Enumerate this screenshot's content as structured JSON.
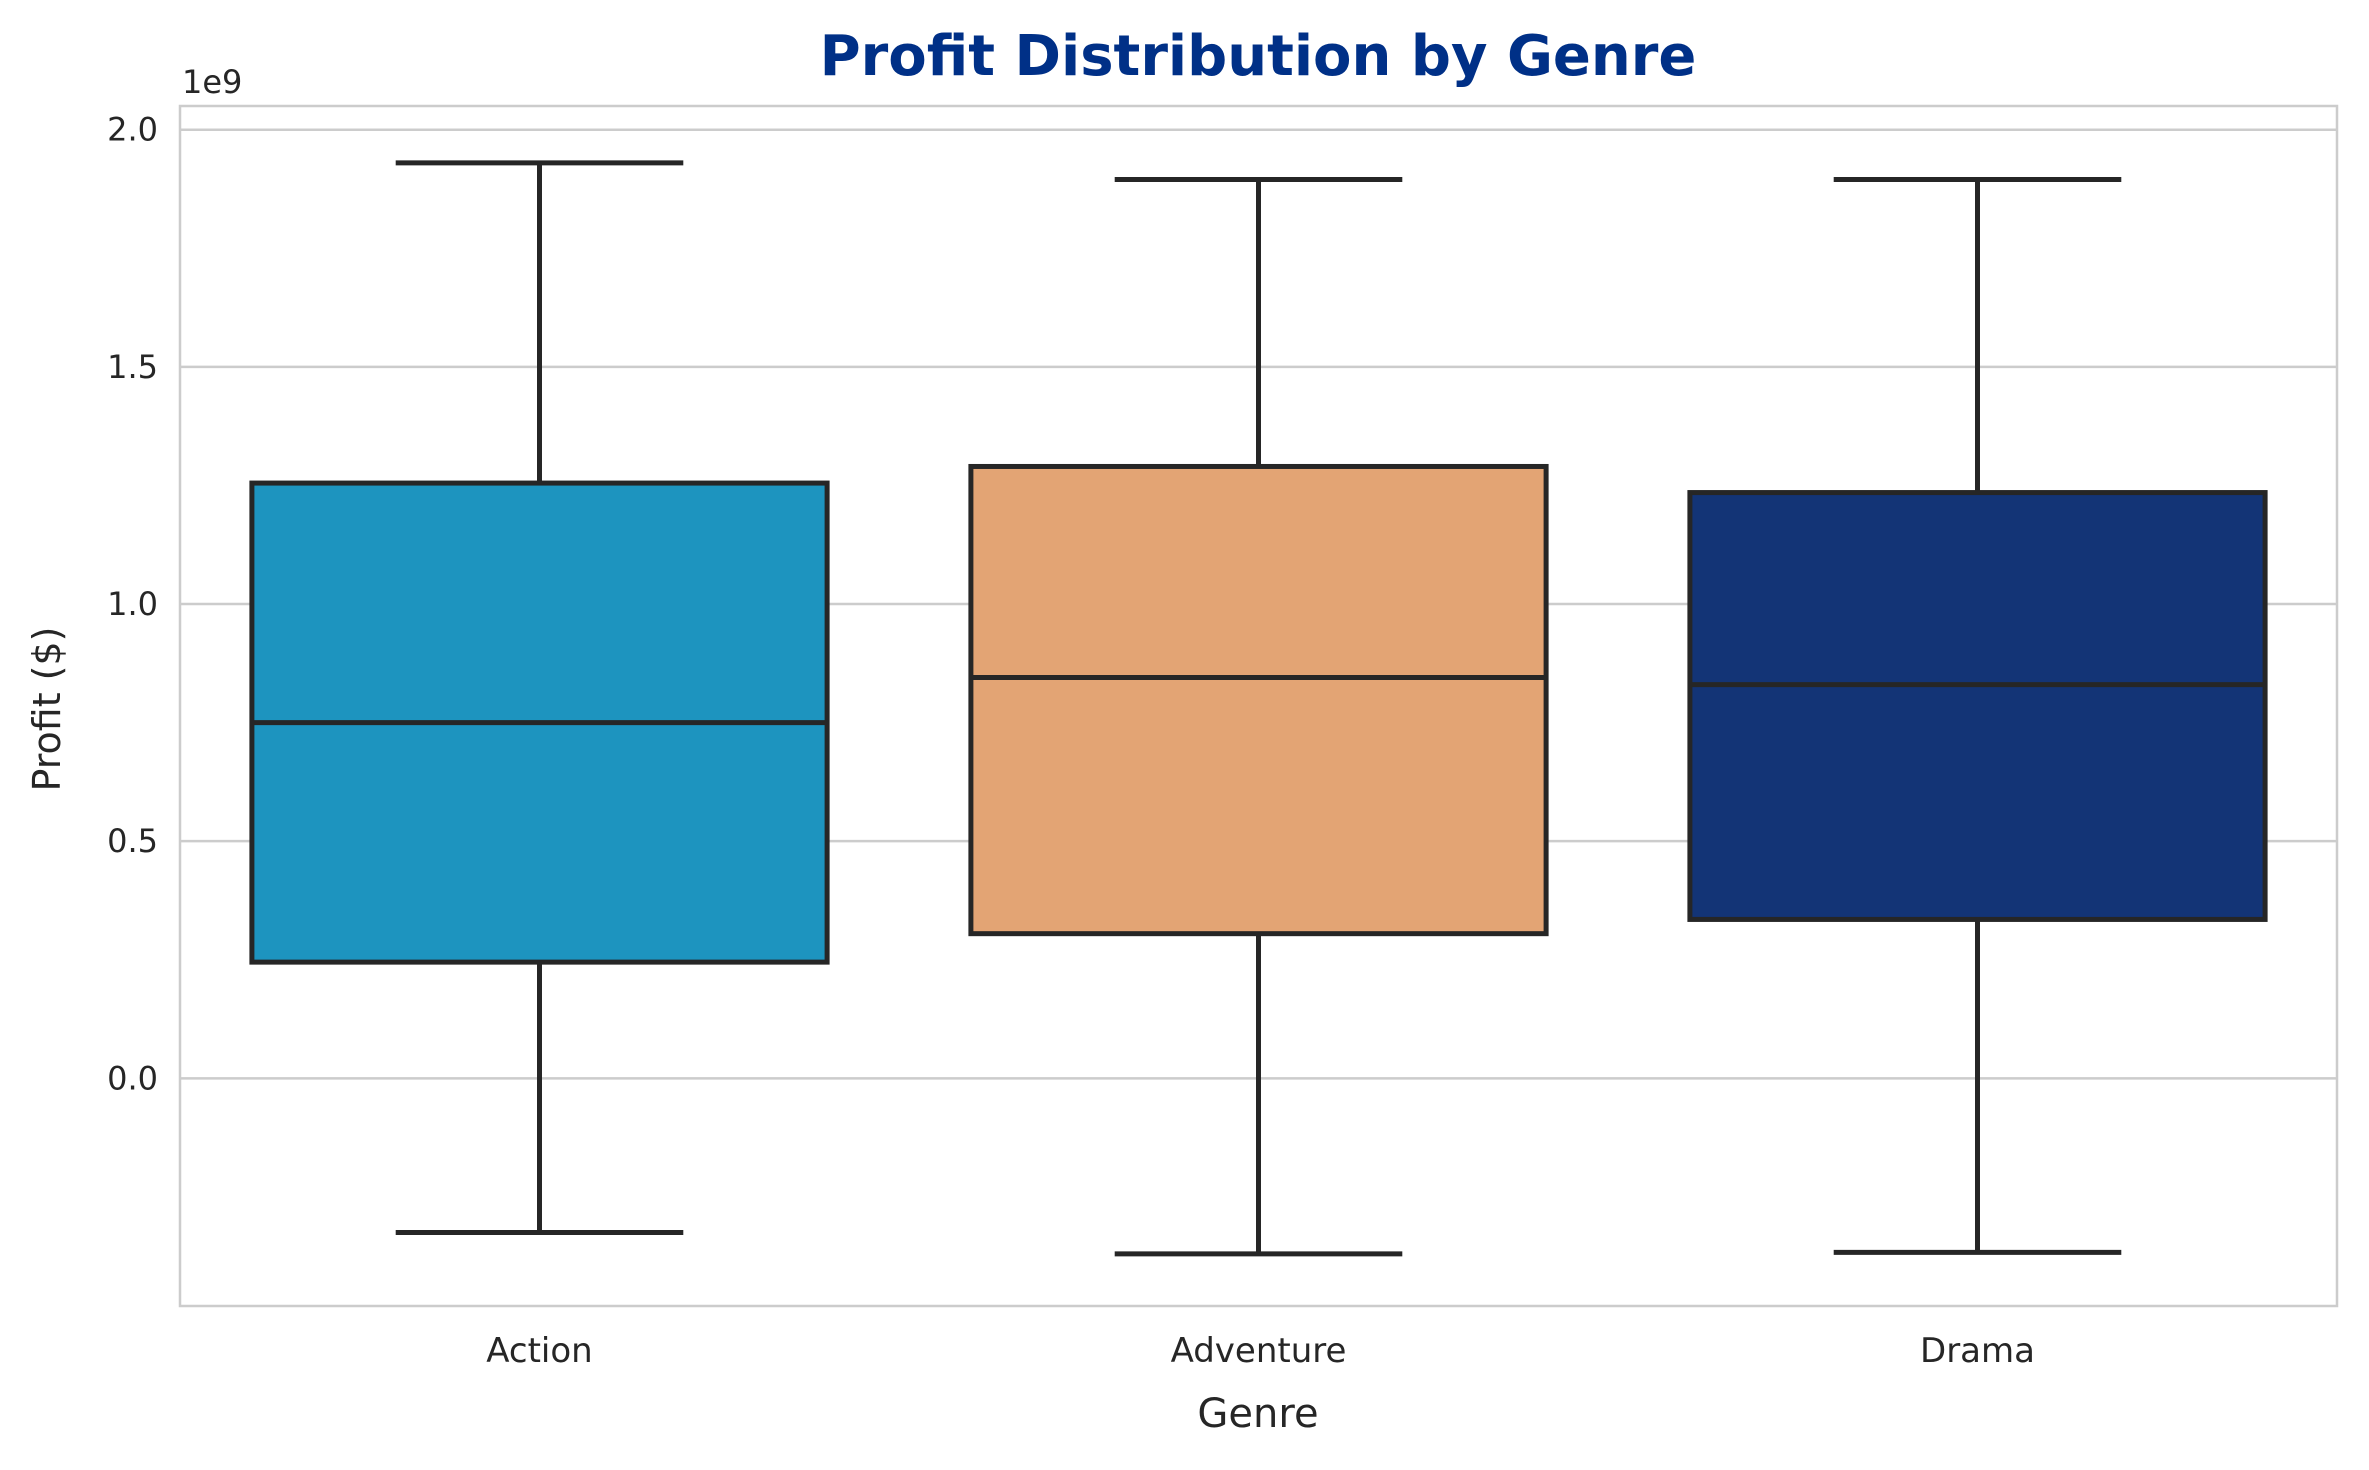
{
  "chart_data": {
    "type": "box",
    "title": "Profit Distribution by Genre",
    "xlabel": "Genre",
    "ylabel": "Profit ($)",
    "y_scale_label": "1e9",
    "y_ticks": [
      "0.0",
      "0.5",
      "1.0",
      "1.5",
      "2.0"
    ],
    "y_tick_values": [
      0.0,
      0.5,
      1.0,
      1.5,
      2.0
    ],
    "ylim": [
      -0.48,
      2.05
    ],
    "grid": "horizontal",
    "categories": [
      "Action",
      "Adventure",
      "Drama"
    ],
    "boxes": [
      {
        "name": "Action",
        "whisker_low": -0.325,
        "q1": 0.245,
        "median": 0.75,
        "q3": 1.255,
        "whisker_high": 1.93,
        "color": "#1d94bf"
      },
      {
        "name": "Adventure",
        "whisker_low": -0.37,
        "q1": 0.305,
        "median": 0.845,
        "q3": 1.29,
        "whisker_high": 1.895,
        "color": "#e3a474"
      },
      {
        "name": "Drama",
        "whisker_low": -0.367,
        "q1": 0.335,
        "median": 0.83,
        "q3": 1.235,
        "whisker_high": 1.895,
        "color": "#133476"
      }
    ]
  }
}
